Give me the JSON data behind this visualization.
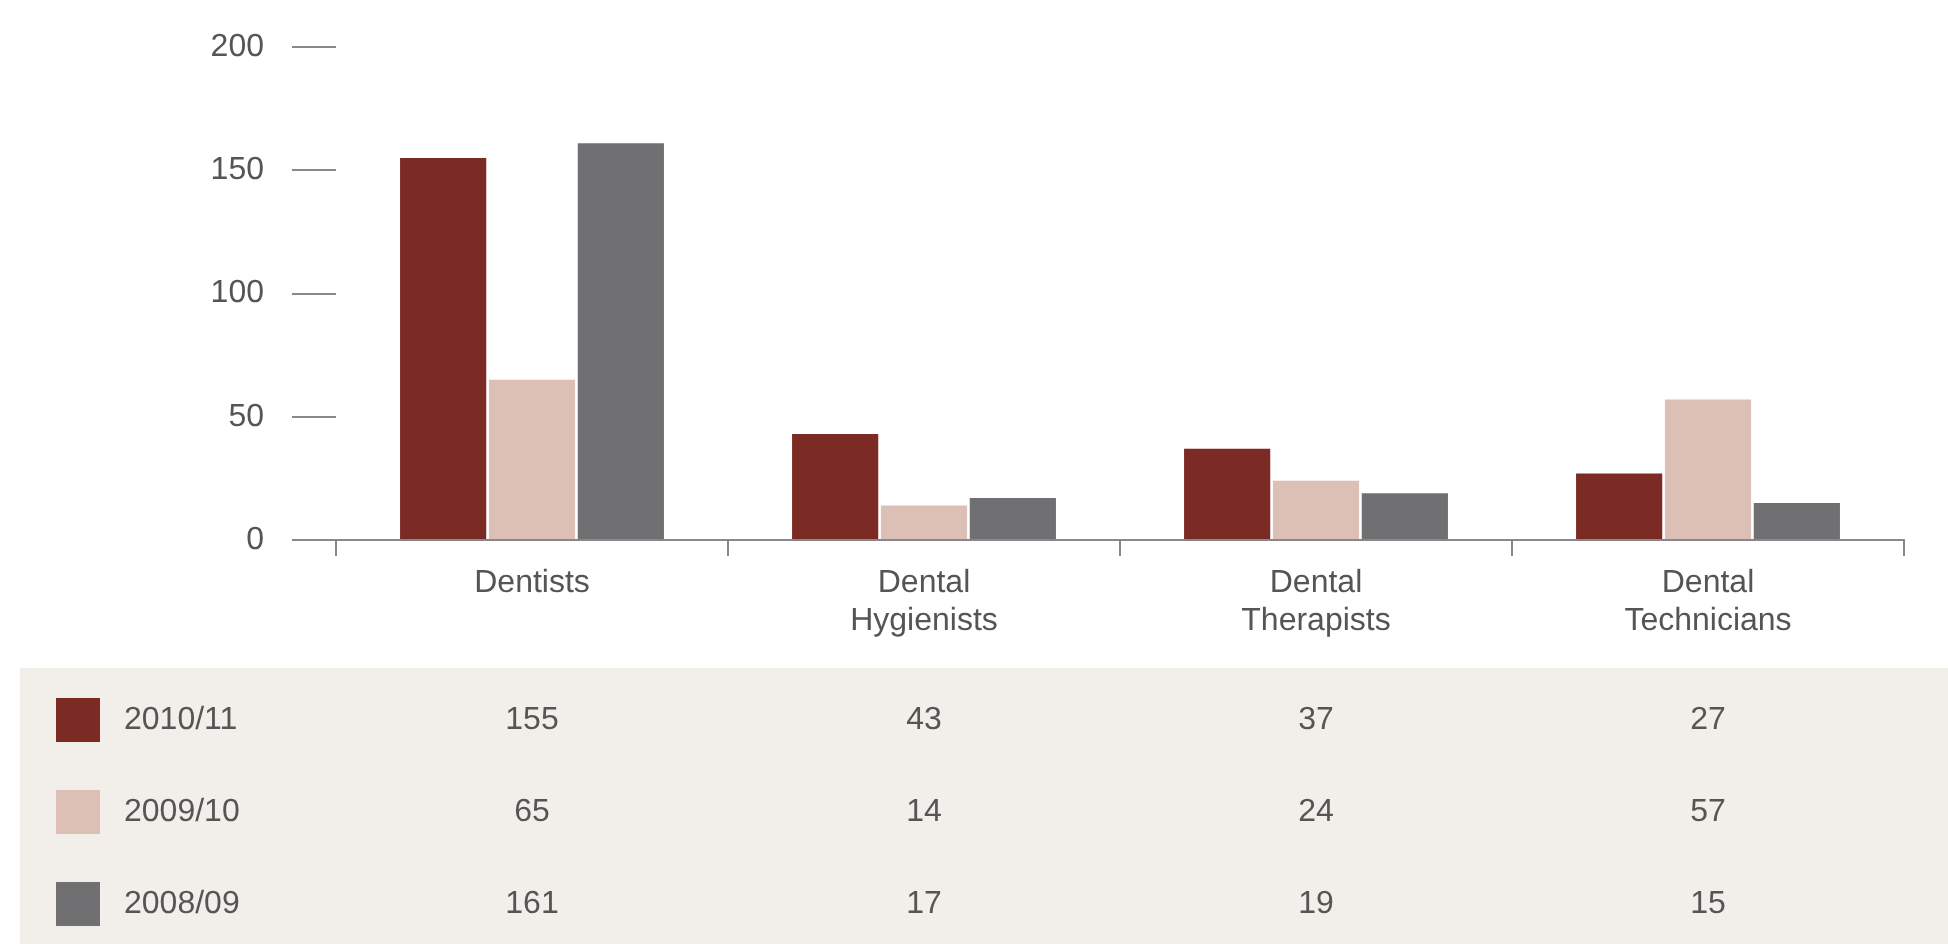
{
  "chart_data": {
    "type": "bar",
    "categories": [
      "Dentists",
      "Dental Hygienists",
      "Dental Therapists",
      "Dental Technicians"
    ],
    "series": [
      {
        "name": "2010/11",
        "color": "#7b2b24",
        "values": [
          155,
          43,
          37,
          27
        ]
      },
      {
        "name": "2009/10",
        "color": "#dcc0b6",
        "values": [
          65,
          14,
          24,
          57
        ]
      },
      {
        "name": "2008/09",
        "color": "#707072",
        "values": [
          161,
          17,
          19,
          15
        ]
      }
    ],
    "ylim": [
      0,
      200
    ],
    "yticks": [
      0,
      50,
      100,
      150,
      200
    ],
    "grid": false,
    "legend": "bottom left",
    "data_labels": true
  }
}
